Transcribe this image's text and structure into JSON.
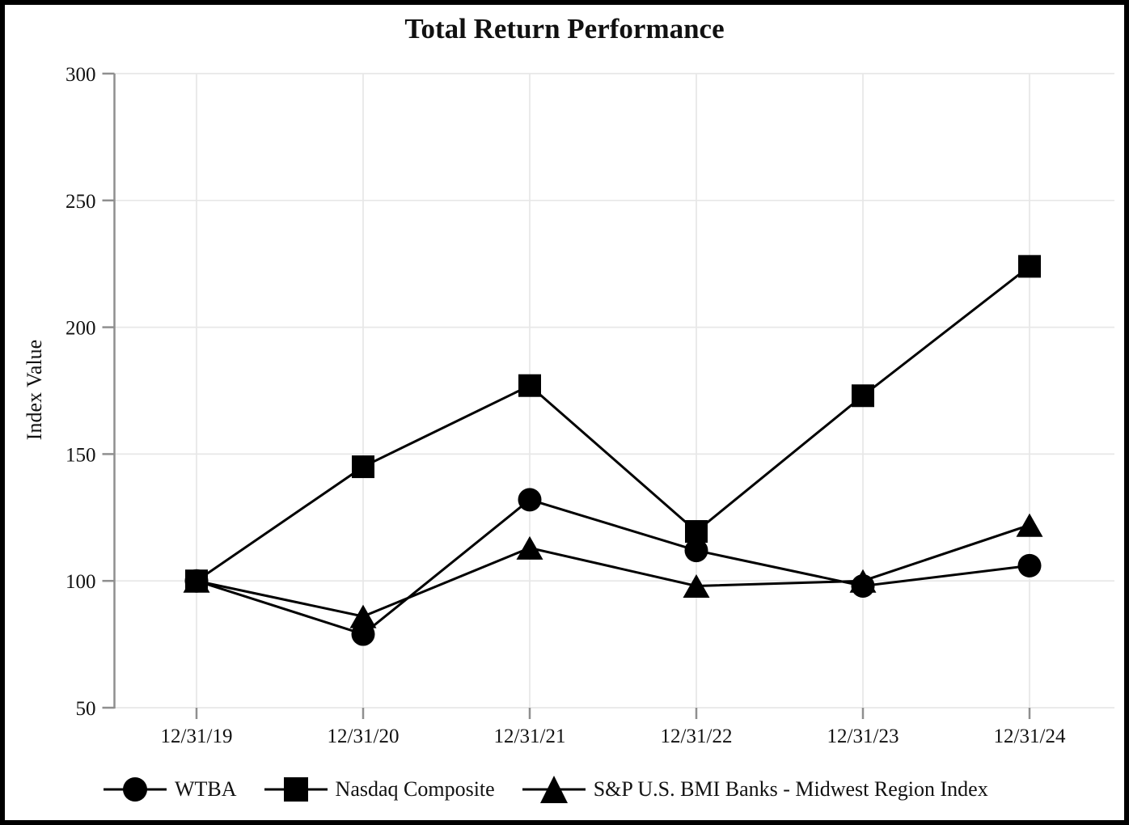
{
  "window": {
    "background_color": "#ffffff",
    "frame_border_color": "#000000"
  },
  "chart_data": {
    "type": "line",
    "title": "Total Return Performance",
    "xlabel": "",
    "ylabel": "Index Value",
    "categories": [
      "12/31/19",
      "12/31/20",
      "12/31/21",
      "12/31/22",
      "12/31/23",
      "12/31/24"
    ],
    "series": [
      {
        "name": "WTBA",
        "marker": "circle",
        "values": [
          100,
          79,
          132,
          112,
          98,
          106
        ]
      },
      {
        "name": "Nasdaq Composite",
        "marker": "square",
        "values": [
          100,
          145,
          177,
          119.5,
          173,
          224
        ]
      },
      {
        "name": "S&P U.S. BMI Banks - Midwest Region Index",
        "marker": "triangle",
        "values": [
          100,
          86,
          113,
          98,
          100,
          122
        ]
      }
    ],
    "y_ticks": [
      50,
      100,
      150,
      200,
      250,
      300
    ],
    "ylim": [
      50,
      300
    ],
    "grid": true,
    "legend_position": "bottom",
    "series_color": "#000000",
    "grid_color": "#e7e7e7",
    "axis_color": "#8f8f8f",
    "text_color": "#111111"
  }
}
